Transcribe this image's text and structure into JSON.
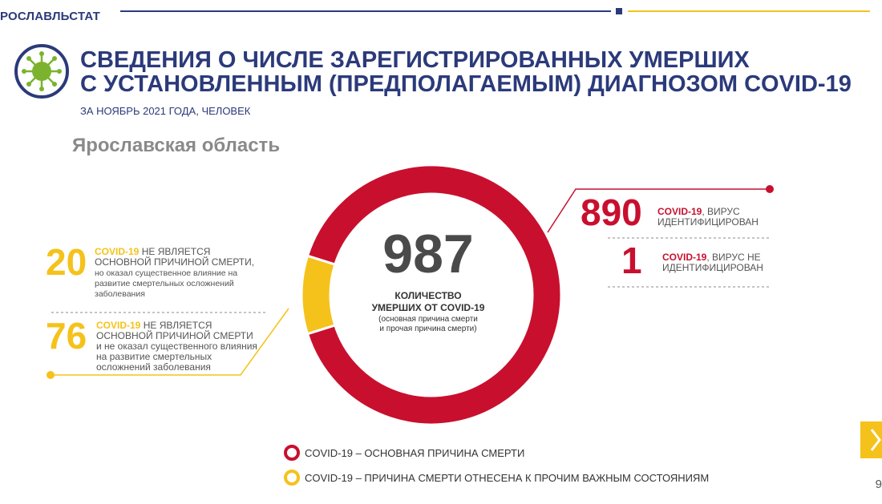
{
  "header": {
    "org": "РОСЛАВЛЬСТАТ",
    "title_line1": "СВЕДЕНИЯ О ЧИСЛЕ ЗАРЕГИСТРИРОВАННЫХ УМЕРШИХ",
    "title_line2": "С УСТАНОВЛЕННЫМ (ПРЕДПОЛАГАЕМЫМ) ДИАГНОЗОМ COVID-19",
    "subtitle": "ЗА НОЯБРЬ 2021 ГОДА, ЧЕЛОВЕК",
    "region": "Ярославская область"
  },
  "center": {
    "total": "987",
    "label_line1": "КОЛИЧЕСТВО",
    "label_line2": "УМЕРШИХ ОТ COVID-19",
    "note_line1": "(основная причина смерти",
    "note_line2": "и прочая причина смерти)"
  },
  "right": [
    {
      "value": "890",
      "lead": "COVID-19",
      "rest1": ", ВИРУС",
      "rest2": "ИДЕНТИФИЦИРОВАН"
    },
    {
      "value": "1",
      "lead": "COVID-19",
      "rest1": ", ВИРУС НЕ",
      "rest2": "ИДЕНТИФИЦИРОВАН"
    }
  ],
  "left": [
    {
      "value": "20",
      "lead": "COVID-19",
      "rest1": " НЕ ЯВЛЯЕТСЯ",
      "line2": "ОСНОВНОЙ ПРИЧИНОЙ СМЕРТИ,",
      "line3": "но оказал существенное влияние на",
      "line4": "развитие смертельных осложнений",
      "line5": "заболевания"
    },
    {
      "value": "76",
      "lead": "COVID-19",
      "rest1": " НЕ ЯВЛЯЕТСЯ",
      "line2": "ОСНОВНОЙ ПРИЧИНОЙ СМЕРТИ",
      "line3": "и не оказал существенного влияния",
      "line4": "на развитие смертельных",
      "line5": "осложнений заболевания"
    }
  ],
  "legend": [
    {
      "text": "COVID-19 – ОСНОВНАЯ ПРИЧИНА СМЕРТИ",
      "color": "#c8102e"
    },
    {
      "text": "COVID-19 – ПРИЧИНА СМЕРТИ ОТНЕСЕНА К ПРОЧИМ ВАЖНЫМ СОСТОЯНИЯМ",
      "color": "#f5c21b"
    }
  ],
  "page_number": "9",
  "colors": {
    "red": "#c8102e",
    "yellow": "#f5c21b",
    "navy": "#2b3a7a",
    "virus_green": "#7bb32e"
  },
  "chart_data": {
    "type": "pie",
    "total": 987,
    "categories": [
      "COVID-19 – ОСНОВНАЯ ПРИЧИНА СМЕРТИ",
      "COVID-19 – ПРИЧИНА СМЕРТИ ОТНЕСЕНА К ПРОЧИМ ВАЖНЫМ СОСТОЯНИЯМ"
    ],
    "values": [
      891,
      96
    ],
    "colors": [
      "#c8102e",
      "#f5c21b"
    ],
    "donut": true
  }
}
